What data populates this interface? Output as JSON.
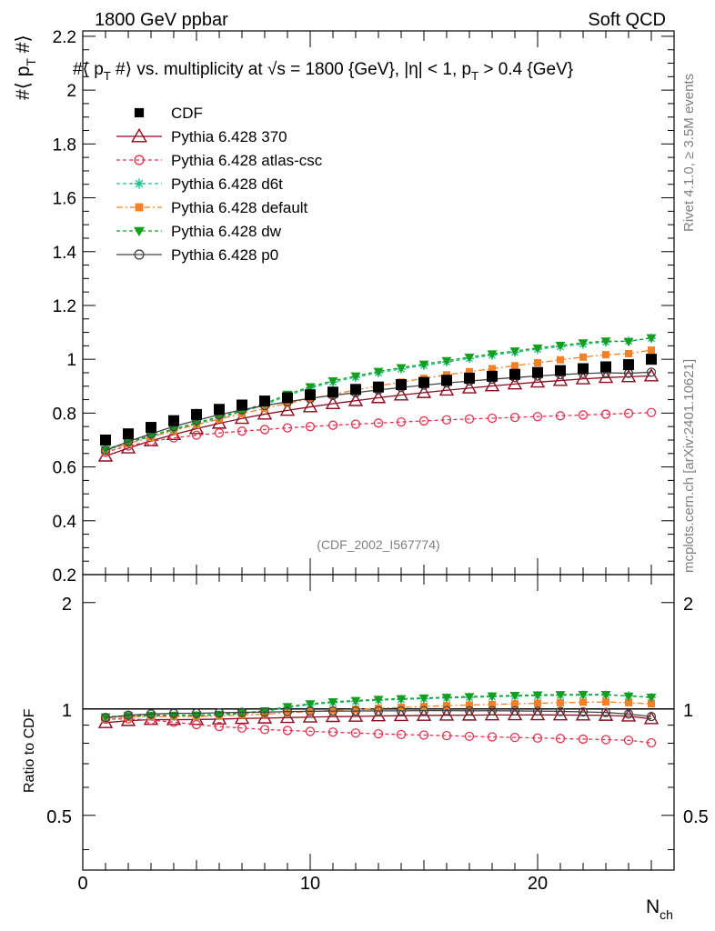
{
  "header": {
    "left": "1800 GeV ppbar",
    "right": "Soft QCD"
  },
  "side": {
    "rivet": "Rivet 4.1.0, ≥ 3.5M events",
    "mcplots": "mcplots.cern.ch [arXiv:2401.10621]"
  },
  "chart_data": {
    "type": "scatter",
    "title": "#⟨ p_T #⟩ vs. multiplicity at √s = 1800 {GeV}, |η| < 1, p_T > 0.4 {GeV}",
    "ylabel": "#⟨ p_T #⟩",
    "xlabel": "N_ch",
    "ratio_ylabel": "Ratio to CDF",
    "watermark": "(CDF_2002_I567774)",
    "xlim": [
      0,
      26
    ],
    "ylim": [
      0.2,
      2.22
    ],
    "ratio_ylim": [
      0.35,
      2.4
    ],
    "xticks": [
      0,
      10,
      20
    ],
    "yticks": [
      0.2,
      0.4,
      0.6,
      0.8,
      1,
      1.2,
      1.4,
      1.6,
      1.8,
      2,
      2.2
    ],
    "ratio_yticks": [
      0.5,
      1,
      2
    ],
    "x": [
      1,
      2,
      3,
      4,
      5,
      6,
      7,
      8,
      9,
      10,
      11,
      12,
      13,
      14,
      15,
      16,
      17,
      18,
      19,
      20,
      21,
      22,
      23,
      24,
      25
    ],
    "legend": "top-left",
    "series": [
      {
        "name": "CDF",
        "color": "#000000",
        "marker": "square",
        "line": "none",
        "values": [
          0.7,
          0.723,
          0.747,
          0.772,
          0.795,
          0.814,
          0.83,
          0.845,
          0.857,
          0.868,
          0.878,
          0.888,
          0.897,
          0.906,
          0.914,
          0.922,
          0.93,
          0.937,
          0.944,
          0.951,
          0.958,
          0.965,
          0.972,
          0.98,
          1.0
        ]
      },
      {
        "name": "Pythia 6.428 370",
        "color": "#8b0a1e",
        "marker": "triangle-open",
        "line": "solid",
        "values": [
          0.64,
          0.67,
          0.697,
          0.72,
          0.742,
          0.762,
          0.78,
          0.796,
          0.81,
          0.823,
          0.835,
          0.846,
          0.857,
          0.867,
          0.876,
          0.885,
          0.893,
          0.901,
          0.908,
          0.915,
          0.921,
          0.927,
          0.932,
          0.935,
          0.938
        ]
      },
      {
        "name": "Pythia 6.428 atlas-csc",
        "color": "#e8314f",
        "marker": "circle-open",
        "line": "dashed",
        "values": [
          0.655,
          0.678,
          0.695,
          0.708,
          0.718,
          0.726,
          0.733,
          0.739,
          0.745,
          0.75,
          0.755,
          0.759,
          0.763,
          0.767,
          0.771,
          0.775,
          0.778,
          0.781,
          0.784,
          0.787,
          0.79,
          0.793,
          0.796,
          0.799,
          0.802
        ]
      },
      {
        "name": "Pythia 6.428 d6t",
        "color": "#1fbf8f",
        "marker": "star",
        "line": "dashed",
        "values": [
          0.662,
          0.688,
          0.713,
          0.737,
          0.76,
          0.782,
          0.805,
          0.83,
          0.865,
          0.893,
          0.915,
          0.933,
          0.95,
          0.964,
          0.977,
          0.99,
          1.003,
          1.015,
          1.026,
          1.037,
          1.047,
          1.056,
          1.064,
          1.068,
          1.078
        ]
      },
      {
        "name": "Pythia 6.428 default",
        "color": "#f48028",
        "marker": "square-small",
        "line": "dashdot",
        "values": [
          0.66,
          0.686,
          0.711,
          0.735,
          0.757,
          0.778,
          0.798,
          0.817,
          0.836,
          0.853,
          0.87,
          0.886,
          0.901,
          0.915,
          0.929,
          0.942,
          0.954,
          0.965,
          0.976,
          0.987,
          0.998,
          1.008,
          1.017,
          1.021,
          1.034
        ]
      },
      {
        "name": "Pythia 6.428 dw",
        "color": "#14a01e",
        "marker": "triangle-down",
        "line": "dashed",
        "values": [
          0.665,
          0.692,
          0.717,
          0.741,
          0.764,
          0.786,
          0.809,
          0.835,
          0.87,
          0.898,
          0.92,
          0.938,
          0.955,
          0.969,
          0.982,
          0.995,
          1.008,
          1.02,
          1.031,
          1.042,
          1.052,
          1.061,
          1.068,
          1.066,
          1.08
        ]
      },
      {
        "name": "Pythia 6.428 p0",
        "color": "#444444",
        "marker": "circle-open",
        "line": "solid",
        "values": [
          0.662,
          0.694,
          0.723,
          0.75,
          0.773,
          0.794,
          0.812,
          0.828,
          0.842,
          0.855,
          0.866,
          0.876,
          0.886,
          0.895,
          0.904,
          0.912,
          0.919,
          0.926,
          0.932,
          0.938,
          0.943,
          0.947,
          0.95,
          0.948,
          0.952
        ]
      }
    ]
  }
}
